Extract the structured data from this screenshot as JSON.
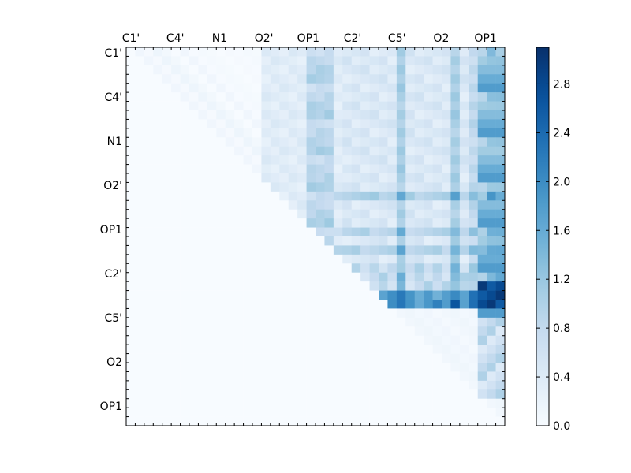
{
  "chart_data": {
    "type": "heatmap",
    "title": "",
    "colormap": "Blues",
    "n_rows": 42,
    "n_cols": 42,
    "x_tick_labels": [
      "C1'",
      "C4'",
      "N1",
      "O2'",
      "OP1",
      "C2'",
      "C5'",
      "O2",
      "OP1"
    ],
    "y_tick_labels": [
      "C1'",
      "C4'",
      "N1",
      "O2'",
      "OP1",
      "C2'",
      "C5'",
      "O2",
      "OP1"
    ],
    "colorbar": {
      "range": [
        0.0,
        3.1
      ],
      "tick_values": [
        0.0,
        0.4,
        0.8,
        1.2,
        1.6,
        2.0,
        2.4,
        2.8
      ],
      "tick_labels": [
        "0.0",
        "0.4",
        "0.8",
        "1.2",
        "1.6",
        "2.0",
        "2.4",
        "2.8"
      ]
    },
    "grid": false,
    "low_color": "#f7fbff",
    "high_color": "#08306b"
  }
}
